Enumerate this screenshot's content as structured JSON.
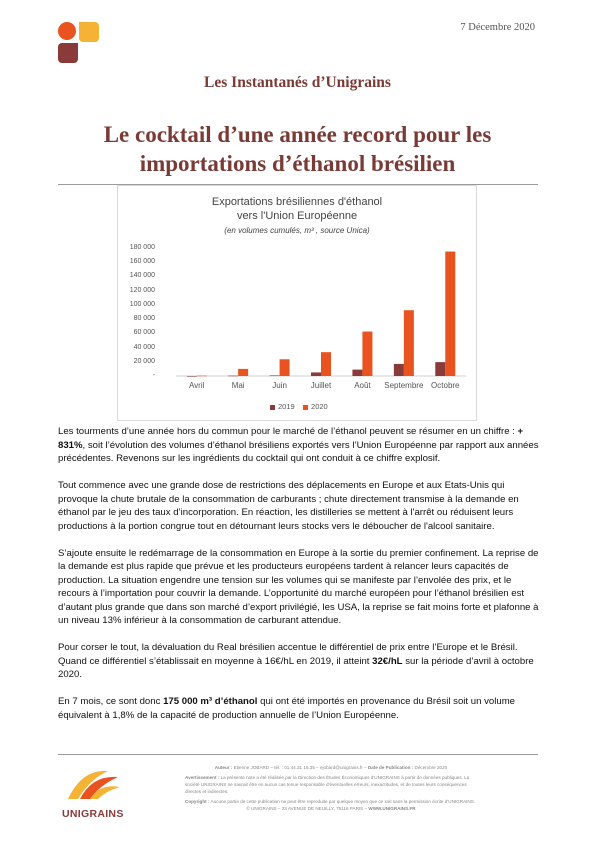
{
  "header": {
    "date": "7 Décembre 2020",
    "series": "Les Instantanés d’Unigrains",
    "title_line1": "Le cocktail d’une année record pour les",
    "title_line2": "importations d’éthanol brésilien"
  },
  "chart_data": {
    "type": "bar",
    "title_line1": "Exportations brésiliennes d'éthanol",
    "title_line2": "vers l'Union Européenne",
    "subtitle": "(en volumes cumulés, m³ , source Unica)",
    "categories": [
      "Avril",
      "Mai",
      "Juin",
      "Juillet",
      "Août",
      "Septembre",
      "Octobre"
    ],
    "series": [
      {
        "name": "2019",
        "color": "#8b3a3a",
        "values": [
          0,
          500,
          800,
          5000,
          9000,
          17000,
          19500
        ]
      },
      {
        "name": "2020",
        "color": "#e8531f",
        "values": [
          500,
          10000,
          23500,
          33500,
          62500,
          92500,
          175000
        ]
      }
    ],
    "y_ticks": [
      "180 000",
      "160 000",
      "140 000",
      "120 000",
      "100 000",
      "80 000",
      "60 000",
      "40 000",
      "20 000",
      "-"
    ],
    "ylim": [
      0,
      180000
    ],
    "grid": false,
    "legend": "bottom"
  },
  "body": {
    "p1_a": "Les tourments d’une année hors du commun pour le marché de l’éthanol peuvent se résumer en un chiffre : ",
    "p1_b": "+ 831%",
    "p1_c": ", soit l’évolution des volumes d’éthanol brésiliens exportés vers l’Union Européenne par rapport aux années précédentes. Revenons sur les ingrédients du cocktail qui ont conduit à ce chiffre explosif.",
    "p2": "Tout commence avec une grande dose de restrictions des déplacements en Europe et aux Etats-Unis qui provoque la chute brutale de la consommation de carburants ; chute directement transmise à la demande en éthanol par le jeu des taux d’incorporation. En réaction, les distilleries se mettent à l'arrêt ou réduisent leurs productions à la portion congrue tout en détournant leurs stocks vers le déboucher de l'alcool sanitaire.",
    "p3": "S’ajoute ensuite le redémarrage de la consommation en Europe à la sortie du premier confinement. La reprise de la demande est plus rapide que prévue et les producteurs européens tardent à relancer leurs capacités de production. La situation engendre une tension sur les volumes qui se manifeste par l’envolée des prix, et le recours à l’importation pour couvrir la demande. L’opportunité du marché européen pour l’éthanol brésilien est d’autant plus grande que dans son marché d’export privilégié, les USA, la reprise se fait moins forte et plafonne à un niveau 13% inférieur à la consommation de carburant attendue.",
    "p4_a": "Pour corser le tout, la dévaluation du Real brésilien accentue le différentiel de prix entre l’Europe et le Brésil. Quand ce différentiel s’établissait en moyenne à 16€/hL en 2019, il atteint ",
    "p4_b": "32€/hL",
    "p4_c": " sur la période d’avril à octobre 2020.",
    "p5_a": "En 7 mois, ce sont donc ",
    "p5_b": "175 000 m³ d’éthanol",
    "p5_c": " qui ont été importés en provenance du Brésil soit un volume équivalent à 1,8% de la capacité de production annuelle de l’Union Européenne."
  },
  "footer": {
    "author_label": "Auteur :",
    "author": "Etienne JOBARD – tél. : 01.44.31 16.35 – ejobard@unigrains.fr –",
    "pub_label": "Date de Publication :",
    "pub": "Décembre 2020",
    "warn_label": "Avertissement :",
    "warn": "La présente note a été réalisée par la Direction des Études Économiques d’UNIGRAINS à partir de données publiques. La société UNIGRAINS ne saurait être en aucun cas tenue responsable d’éventuelles erreurs, inexactitudes, et de toutes leurs conséquences directes et indirectes.",
    "copy_label": "Copyright :",
    "copy": "Aucune partie de cette publication ne peut être reproduite par quelque moyen que ce soit sans la permission écrite d’UNIGRAINS.",
    "address": "© UNIGRAINS – 23 AVENUE DE NEUILLY, 75116 PARIS –",
    "site": "WWW.UNIGRAINS.FR",
    "logo_text": "UNIGRAINS"
  }
}
